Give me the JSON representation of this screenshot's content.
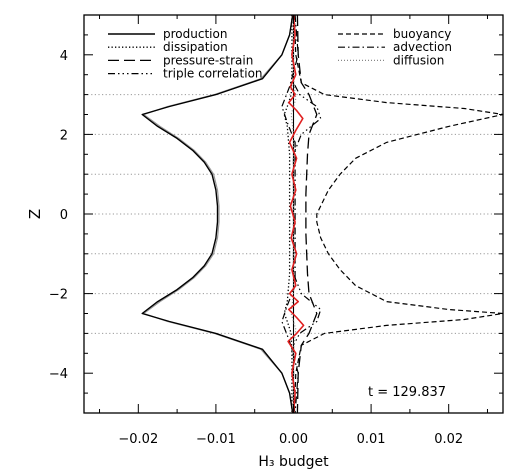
{
  "chart_data": {
    "type": "line",
    "title": "",
    "xlabel": "H₃ budget",
    "ylabel": "Z",
    "xlim": [
      -0.027,
      0.027
    ],
    "ylim": [
      -5,
      5
    ],
    "xticks": [
      -0.02,
      -0.01,
      0.0,
      0.01,
      0.02
    ],
    "xtick_labels": [
      "−0.02",
      "−0.01",
      "0.00",
      "0.01",
      "0.02"
    ],
    "yticks": [
      -4,
      -2,
      0,
      2,
      4
    ],
    "ytick_labels": [
      "−4",
      "−2",
      "0",
      "2",
      "4"
    ],
    "reference_lines_y": [
      -3,
      -2,
      -1,
      0,
      1,
      2,
      3
    ],
    "reference_line_style": "dotted grey horizontal lines",
    "legend_position": "top",
    "annotation": "t = 129.837",
    "series": [
      {
        "name": "production",
        "style": "solid",
        "color": "#000000",
        "x": [
          -0.0001,
          -0.0005,
          -0.0015,
          -0.004,
          -0.01,
          -0.016,
          -0.0195,
          -0.0175,
          -0.015,
          -0.013,
          -0.0115,
          -0.0105,
          -0.01,
          -0.0098,
          -0.0098,
          -0.01,
          -0.0105,
          -0.0115,
          -0.013,
          -0.015,
          -0.0175,
          -0.0195,
          -0.016,
          -0.01,
          -0.004,
          -0.0015,
          -0.0005,
          -0.0001
        ],
        "y": [
          5,
          4.5,
          4,
          3.4,
          3.0,
          2.7,
          2.5,
          2.2,
          1.9,
          1.6,
          1.3,
          1.0,
          0.6,
          0.2,
          -0.2,
          -0.6,
          -1.0,
          -1.3,
          -1.6,
          -1.9,
          -2.2,
          -2.5,
          -2.7,
          -3.0,
          -3.4,
          -4,
          -4.5,
          -5
        ]
      },
      {
        "name": "dissipation",
        "style": "dotted",
        "color": "#000000",
        "x": [
          -0.0002,
          -0.0002,
          -0.0003,
          -0.0008,
          -0.0012,
          -0.0008,
          -0.0005,
          -0.0005,
          -0.0005,
          -0.0008,
          -0.0012,
          -0.0008,
          -0.0003,
          -0.0002,
          -0.0002
        ],
        "y": [
          5,
          3.5,
          3.0,
          2.7,
          2.5,
          2.2,
          1.5,
          0,
          -1.5,
          -2.2,
          -2.5,
          -2.7,
          -3.0,
          -3.5,
          -5
        ]
      },
      {
        "name": "pressure-strain",
        "style": "longdash",
        "color": "#000000",
        "x": [
          0.0005,
          0.0006,
          0.001,
          0.002,
          0.003,
          0.002,
          0.0018,
          0.0016,
          0.0016,
          0.0018,
          0.002,
          0.003,
          0.002,
          0.001,
          0.0006,
          0.0005
        ],
        "y": [
          5,
          4,
          3.3,
          3.0,
          2.5,
          2.0,
          1.5,
          0.5,
          -0.5,
          -1.5,
          -2.0,
          -2.5,
          -3.0,
          -3.3,
          -4,
          -5
        ]
      },
      {
        "name": "triple correlation",
        "style": "dashdotdot",
        "color": "#000000",
        "x": [
          0.0,
          0.0,
          0.0008,
          0.003,
          0.0035,
          0.001,
          0.0,
          0.0,
          0.001,
          0.0035,
          0.003,
          0.0008,
          0.0,
          0.0
        ],
        "y": [
          5,
          3.3,
          3.0,
          2.7,
          2.4,
          2.0,
          1.5,
          -1.5,
          -2.0,
          -2.4,
          -2.7,
          -3.0,
          -3.3,
          -5
        ]
      },
      {
        "name": "buoyancy",
        "style": "dash",
        "color": "#000000",
        "x": [
          0.0001,
          0.0003,
          0.001,
          0.004,
          0.012,
          0.022,
          0.027,
          0.02,
          0.012,
          0.008,
          0.006,
          0.0045,
          0.0035,
          0.003,
          0.003,
          0.0035,
          0.0045,
          0.006,
          0.008,
          0.012,
          0.02,
          0.027,
          0.022,
          0.012,
          0.004,
          0.001,
          0.0003,
          0.0001
        ],
        "y": [
          5,
          4,
          3.3,
          3.0,
          2.8,
          2.65,
          2.5,
          2.2,
          1.8,
          1.4,
          1.0,
          0.6,
          0.2,
          0,
          -0.2,
          -0.6,
          -1.0,
          -1.4,
          -1.8,
          -2.2,
          -2.4,
          -2.5,
          -2.65,
          -2.8,
          -3.0,
          -3.3,
          -4,
          -5
        ]
      },
      {
        "name": "advection",
        "style": "dashdot",
        "color": "#000000",
        "x": [
          0.0002,
          0.0006,
          -0.0005,
          -0.0015,
          -0.0008,
          0.0002,
          0.0002,
          -0.0008,
          -0.0015,
          -0.0005,
          0.0006,
          0.0002
        ],
        "y": [
          5,
          4,
          3.2,
          2.7,
          2.3,
          1.8,
          -1.8,
          -2.3,
          -2.7,
          -3.2,
          -4,
          -5
        ]
      },
      {
        "name": "diffusion",
        "style": "dotted-grey",
        "color": "#888888",
        "x": [
          0.0,
          0.0,
          0.0003,
          -0.0003,
          0.0,
          0.0,
          -0.0003,
          0.0003,
          0.0,
          0.0
        ],
        "y": [
          5,
          3.4,
          2.9,
          2.5,
          2.0,
          -2.0,
          -2.5,
          -2.9,
          -3.4,
          -5
        ]
      },
      {
        "name": "",
        "style": "solid-grey",
        "color": "#999999",
        "x": [
          -0.0001,
          -0.0005,
          -0.0015,
          -0.0042,
          -0.0102,
          -0.0162,
          -0.0193,
          -0.0172,
          -0.0148,
          -0.0128,
          -0.0113,
          -0.0103,
          -0.0098,
          -0.0096,
          -0.0096,
          -0.0098,
          -0.0103,
          -0.0113,
          -0.0128,
          -0.0148,
          -0.0172,
          -0.0193,
          -0.0162,
          -0.0102,
          -0.0042,
          -0.0015,
          -0.0005,
          -0.0001
        ],
        "y": [
          5,
          4.5,
          4,
          3.4,
          3.0,
          2.7,
          2.5,
          2.2,
          1.9,
          1.6,
          1.3,
          1.0,
          0.6,
          0.2,
          -0.2,
          -0.6,
          -1.0,
          -1.3,
          -1.6,
          -1.9,
          -2.2,
          -2.5,
          -2.7,
          -3.0,
          -3.4,
          -4,
          -4.5,
          -5
        ]
      },
      {
        "name": "",
        "style": "solid-red",
        "color": "#e02020",
        "x": [
          0.0,
          0.0002,
          -0.0002,
          0.0003,
          -0.0004,
          0.0002,
          -0.0006,
          0.0004,
          0.0012,
          0.0003,
          -0.0005,
          0.0004,
          -0.0002,
          0.0003,
          -0.0004,
          0.0002,
          -0.0003,
          0.0004,
          -0.0002,
          0.0003,
          -0.0005,
          0.0006,
          -0.0006,
          0.0004,
          0.0013,
          0.0004,
          -0.0007,
          0.0003,
          -0.0002,
          0.0002,
          0.0
        ],
        "y": [
          5,
          4.5,
          4.0,
          3.5,
          3.2,
          3.0,
          2.8,
          2.6,
          2.4,
          2.1,
          1.8,
          1.4,
          1.0,
          0.6,
          0.2,
          -0.2,
          -0.6,
          -1.0,
          -1.4,
          -1.8,
          -2.0,
          -2.2,
          -2.4,
          -2.6,
          -2.8,
          -3.0,
          -3.2,
          -3.5,
          -4.0,
          -4.5,
          -5
        ]
      }
    ]
  }
}
